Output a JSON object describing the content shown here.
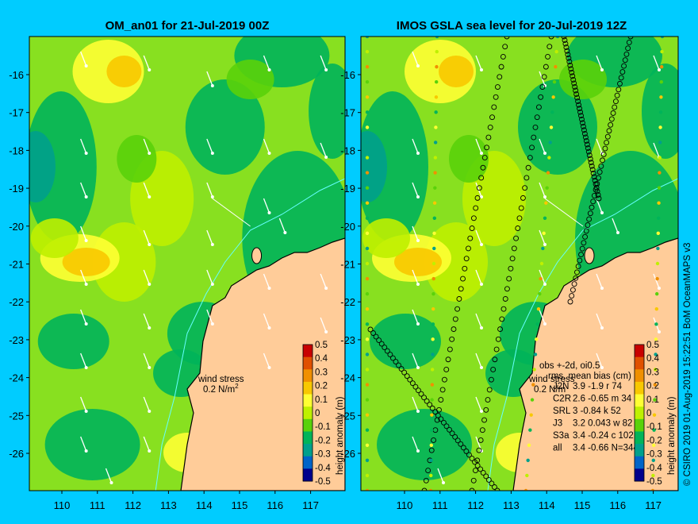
{
  "left_panel": {
    "title": "OM_an01 for 21-Jul-2019 00Z",
    "wind_label": "wind stress",
    "wind_value": "0.2 N/m",
    "wind_exp": "2"
  },
  "right_panel": {
    "title": "IMOS GSLA sea level  for 20-Jul-2019 12Z",
    "wind_label": "wind stress",
    "wind_value": "0.2 N/m",
    "obs_header": "obs +-2d, oi0.5",
    "stats_header": "rms, mean bias (cm)",
    "stats": [
      {
        "name": "J2N",
        "vals": "3.9 -1.9 r 74"
      },
      {
        "name": "C2R",
        "vals": "2.6 -0.65 m 34"
      },
      {
        "name": "SRL",
        "vals": "3 -0.84 k 52"
      },
      {
        "name": "J3",
        "vals": "3.2 0.043 w 82"
      },
      {
        "name": "S3a",
        "vals": "3.4 -0.24 c 102"
      },
      {
        "name": "all",
        "vals": "3.4 -0.66 N=344"
      }
    ]
  },
  "colorbar": {
    "label": "height anomaly (m)",
    "ticks": [
      "0.5",
      "0.4",
      "0.3",
      "0.2",
      "0.1",
      "0",
      "-0.1",
      "-0.2",
      "-0.3",
      "-0.4",
      "-0.5"
    ],
    "colors": [
      "#c80000",
      "#e05000",
      "#f09000",
      "#f8c800",
      "#ffff33",
      "#bff000",
      "#5ad20a",
      "#00b45a",
      "#00a08c",
      "#0064c8",
      "#00008c"
    ]
  },
  "map": {
    "x_ticks": [
      "110",
      "111",
      "112",
      "113",
      "114",
      "115",
      "116",
      "117"
    ],
    "y_ticks": [
      "-16",
      "-17",
      "-18",
      "-19",
      "-20",
      "-21",
      "-22",
      "-23",
      "-24",
      "-25",
      "-26"
    ],
    "land_color": "#ffcc99",
    "ocean_base_color": "#88e020"
  },
  "credit": "© CSIRO 2019   01-Aug-2019 15:22:51 BoM OceanMAPS v3"
}
